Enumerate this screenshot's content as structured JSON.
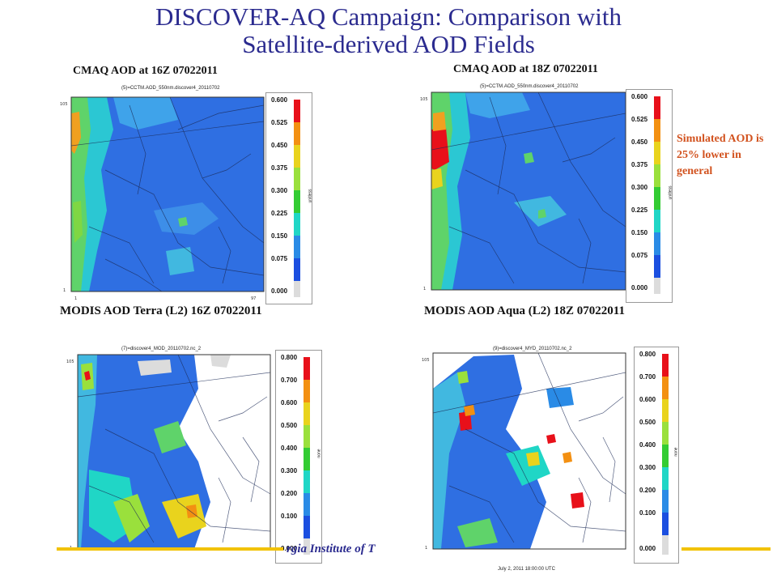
{
  "slide": {
    "title_line1": "DISCOVER-AQ Campaign: Comparison with",
    "title_line2": "Satellite-derived AOD Fields",
    "note": "Simulated AOD is 25% lower in general",
    "footer": "rgia Institute of T"
  },
  "panels": [
    {
      "caption": "CMAQ AOD at 16Z 07022011",
      "plot_title": "(5)=CCTM.AOD_550nm.discover4_20110702",
      "colorbar": [
        "0.600",
        "0.525",
        "0.450",
        "0.375",
        "0.300",
        "0.225",
        "0.150",
        "0.075",
        "0.000"
      ],
      "unit": "unitless"
    },
    {
      "caption": "CMAQ AOD at 18Z 07022011",
      "plot_title": "(5)=CCTM.AOD_550nm.discover4_20110702",
      "colorbar": [
        "0.600",
        "0.525",
        "0.450",
        "0.375",
        "0.300",
        "0.225",
        "0.150",
        "0.075",
        "0.000"
      ],
      "unit": "unitless"
    },
    {
      "caption": "MODIS AOD Terra (L2) 16Z 07022011",
      "plot_title": "(7)=discover4_MOD_20110702.nc_2",
      "colorbar": [
        "0.800",
        "0.700",
        "0.600",
        "0.500",
        "0.400",
        "0.300",
        "0.200",
        "0.100",
        "0.000"
      ],
      "unit": "none"
    },
    {
      "caption": "MODIS AOD Aqua (L2) 18Z 07022011",
      "plot_title": "(9)=discover4_MYD_20110702.nc_2",
      "colorbar": [
        "0.800",
        "0.700",
        "0.600",
        "0.500",
        "0.400",
        "0.300",
        "0.200",
        "0.100",
        "0.000"
      ],
      "unit": "none",
      "date": "July 2, 2011 18:00:00 UTC"
    }
  ],
  "colors": {
    "title": "#2b2b8f",
    "note": "#d2521e",
    "footer_line": "#f2c200",
    "scale": [
      "#e8101a",
      "#f39012",
      "#e9d31d",
      "#9ae03c",
      "#33cc33",
      "#20d6c6",
      "#2a8be6",
      "#1b4fe0",
      "#dcdcdc"
    ]
  }
}
